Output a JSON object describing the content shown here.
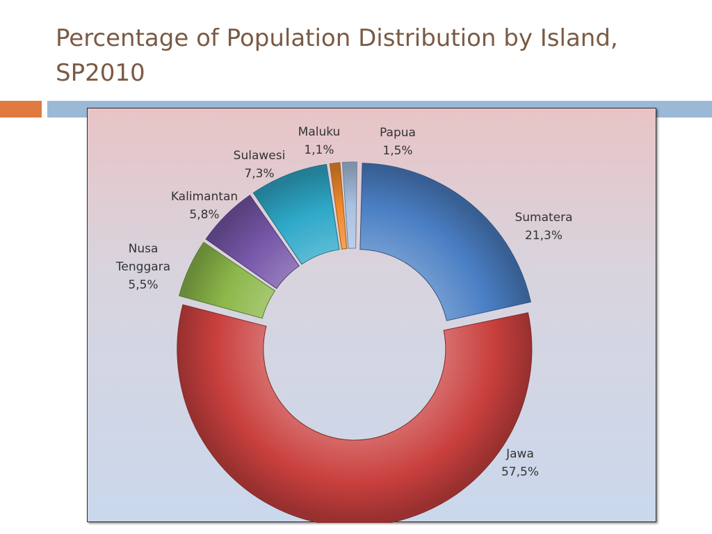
{
  "slide": {
    "title": "Percentage of Population Distribution by Island, SP2010",
    "colors": {
      "title": "#7a5a45",
      "accent": "#e07a3f",
      "rule": "#9bb8d6"
    }
  },
  "chart_data": {
    "type": "pie",
    "variant": "doughnut",
    "title": "",
    "legend": "none",
    "slices": [
      {
        "name": "Sumatera",
        "value": 21.3,
        "label": "21,3%",
        "color": "#4a7fc4"
      },
      {
        "name": "Jawa",
        "value": 57.5,
        "label": "57,5%",
        "color": "#c9403e"
      },
      {
        "name": "Nusa Tenggara",
        "name_lines": [
          "Nusa",
          "Tenggara"
        ],
        "value": 5.5,
        "label": "5,5%",
        "color": "#8cb84a"
      },
      {
        "name": "Kalimantan",
        "value": 5.8,
        "label": "5,8%",
        "color": "#7556a8"
      },
      {
        "name": "Sulawesi",
        "value": 7.3,
        "label": "7,3%",
        "color": "#2ea8c8"
      },
      {
        "name": "Maluku",
        "value": 1.1,
        "label": "1,1%",
        "color": "#f08a2a"
      },
      {
        "name": "Papua",
        "value": 1.5,
        "label": "1,5%",
        "color": "#a9c2e2"
      }
    ]
  }
}
